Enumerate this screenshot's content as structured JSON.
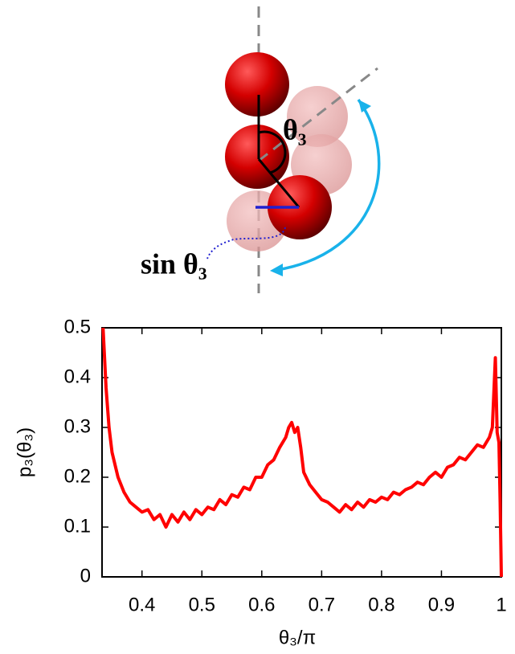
{
  "chart_data": {
    "type": "line",
    "annotations": [
      "θ₃",
      "sin θ₃"
    ],
    "xlabel": "θ₃/π",
    "ylabel": "p₃(θ₃)",
    "color": "#ff0000",
    "xlim": [
      0.3333,
      1
    ],
    "ylim": [
      0,
      0.5
    ],
    "xticks": [
      0.4,
      0.5,
      0.6,
      0.7,
      0.8,
      0.9,
      1
    ],
    "yticks": [
      0,
      0.1,
      0.2,
      0.3,
      0.4,
      0.5
    ],
    "x": [
      0.335,
      0.34,
      0.345,
      0.35,
      0.36,
      0.37,
      0.38,
      0.39,
      0.4,
      0.41,
      0.42,
      0.43,
      0.44,
      0.45,
      0.46,
      0.47,
      0.48,
      0.49,
      0.5,
      0.51,
      0.52,
      0.53,
      0.54,
      0.55,
      0.56,
      0.57,
      0.58,
      0.59,
      0.6,
      0.61,
      0.62,
      0.63,
      0.64,
      0.645,
      0.65,
      0.655,
      0.66,
      0.665,
      0.67,
      0.68,
      0.69,
      0.7,
      0.71,
      0.72,
      0.73,
      0.74,
      0.75,
      0.76,
      0.77,
      0.78,
      0.79,
      0.8,
      0.81,
      0.82,
      0.83,
      0.84,
      0.85,
      0.86,
      0.87,
      0.88,
      0.89,
      0.9,
      0.91,
      0.92,
      0.93,
      0.94,
      0.95,
      0.96,
      0.97,
      0.98,
      0.985,
      0.99,
      0.993,
      0.996,
      0.998,
      1.0
    ],
    "values": [
      0.5,
      0.38,
      0.3,
      0.25,
      0.2,
      0.17,
      0.15,
      0.14,
      0.13,
      0.135,
      0.115,
      0.125,
      0.1,
      0.125,
      0.11,
      0.13,
      0.115,
      0.135,
      0.125,
      0.14,
      0.135,
      0.155,
      0.145,
      0.165,
      0.16,
      0.18,
      0.175,
      0.2,
      0.2,
      0.225,
      0.235,
      0.26,
      0.28,
      0.3,
      0.31,
      0.29,
      0.3,
      0.26,
      0.21,
      0.185,
      0.17,
      0.155,
      0.15,
      0.14,
      0.13,
      0.145,
      0.135,
      0.15,
      0.14,
      0.155,
      0.15,
      0.16,
      0.155,
      0.17,
      0.165,
      0.175,
      0.18,
      0.19,
      0.185,
      0.2,
      0.21,
      0.2,
      0.22,
      0.225,
      0.24,
      0.235,
      0.25,
      0.265,
      0.26,
      0.28,
      0.3,
      0.44,
      0.29,
      0.27,
      0.15,
      0
    ]
  }
}
